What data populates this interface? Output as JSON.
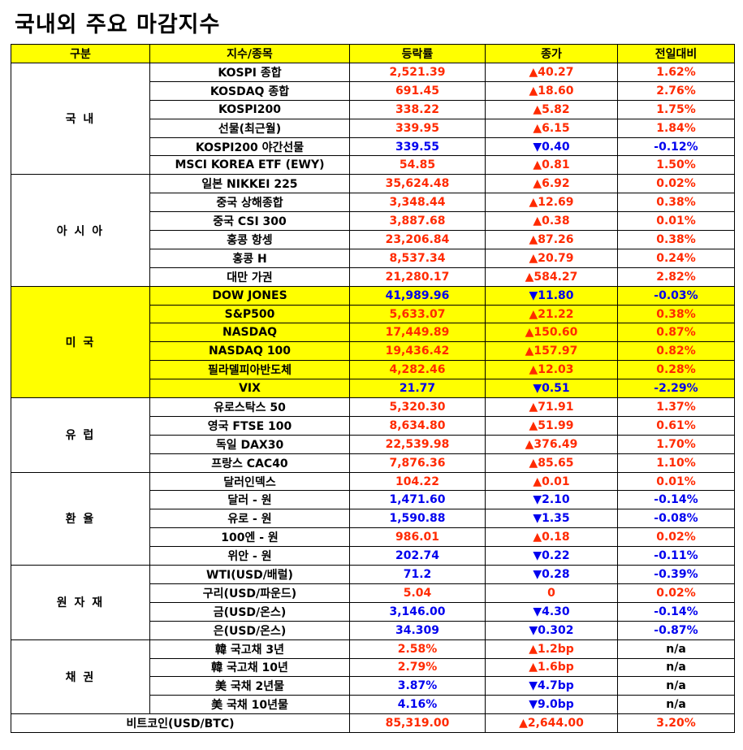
{
  "title": "국내외 주요 마감지수",
  "headers": [
    "구분",
    "지수/종목",
    "등락률",
    "종가",
    "전일대비"
  ],
  "colors": {
    "up": "#ff2a00",
    "down": "#0000ee",
    "highlight": "#ffff00"
  },
  "groups": [
    {
      "label": "국 내",
      "highlight": false,
      "rows": [
        {
          "name": "KOSPI 종합",
          "value": "2,521.39",
          "change": "▲40.27",
          "pct": "1.62%",
          "dir": "up"
        },
        {
          "name": "KOSDAQ 종합",
          "value": "691.45",
          "change": "▲18.60",
          "pct": "2.76%",
          "dir": "up"
        },
        {
          "name": "KOSPI200",
          "value": "338.22",
          "change": "▲5.82",
          "pct": "1.75%",
          "dir": "up"
        },
        {
          "name": "선물(최근월)",
          "value": "339.95",
          "change": "▲6.15",
          "pct": "1.84%",
          "dir": "up"
        },
        {
          "name": "KOSPI200 야간선물",
          "value": "339.55",
          "change": "▼0.40",
          "pct": "-0.12%",
          "dir": "down"
        },
        {
          "name": "MSCI KOREA ETF (EWY)",
          "value": "54.85",
          "change": "▲0.81",
          "pct": "1.50%",
          "dir": "up"
        }
      ]
    },
    {
      "label": "아 시 아",
      "highlight": false,
      "rows": [
        {
          "name": "일본 NIKKEI 225",
          "value": "35,624.48",
          "change": "▲6.92",
          "pct": "0.02%",
          "dir": "up"
        },
        {
          "name": "중국 상해종합",
          "value": "3,348.44",
          "change": "▲12.69",
          "pct": "0.38%",
          "dir": "up"
        },
        {
          "name": "중국 CSI 300",
          "value": "3,887.68",
          "change": "▲0.38",
          "pct": "0.01%",
          "dir": "up"
        },
        {
          "name": "홍콩 항셍",
          "value": "23,206.84",
          "change": "▲87.26",
          "pct": "0.38%",
          "dir": "up"
        },
        {
          "name": "홍콩 H",
          "value": "8,537.34",
          "change": "▲20.79",
          "pct": "0.24%",
          "dir": "up"
        },
        {
          "name": "대만 가권",
          "value": "21,280.17",
          "change": "▲584.27",
          "pct": "2.82%",
          "dir": "up"
        }
      ]
    },
    {
      "label": "미 국",
      "highlight": true,
      "rows": [
        {
          "name": "DOW JONES",
          "value": "41,989.96",
          "change": "▼11.80",
          "pct": "-0.03%",
          "dir": "down"
        },
        {
          "name": "S&P500",
          "value": "5,633.07",
          "change": "▲21.22",
          "pct": "0.38%",
          "dir": "up"
        },
        {
          "name": "NASDAQ",
          "value": "17,449.89",
          "change": "▲150.60",
          "pct": "0.87%",
          "dir": "up"
        },
        {
          "name": "NASDAQ 100",
          "value": "19,436.42",
          "change": "▲157.97",
          "pct": "0.82%",
          "dir": "up"
        },
        {
          "name": "필라델피아반도체",
          "value": "4,282.46",
          "change": "▲12.03",
          "pct": "0.28%",
          "dir": "up"
        },
        {
          "name": "VIX",
          "value": "21.77",
          "change": "▼0.51",
          "pct": "-2.29%",
          "dir": "down"
        }
      ]
    },
    {
      "label": "유 럽",
      "highlight": false,
      "rows": [
        {
          "name": "유로스탁스 50",
          "value": "5,320.30",
          "change": "▲71.91",
          "pct": "1.37%",
          "dir": "up"
        },
        {
          "name": "영국 FTSE 100",
          "value": "8,634.80",
          "change": "▲51.99",
          "pct": "0.61%",
          "dir": "up"
        },
        {
          "name": "독일 DAX30",
          "value": "22,539.98",
          "change": "▲376.49",
          "pct": "1.70%",
          "dir": "up"
        },
        {
          "name": "프랑스 CAC40",
          "value": "7,876.36",
          "change": "▲85.65",
          "pct": "1.10%",
          "dir": "up"
        }
      ]
    },
    {
      "label": "환 율",
      "highlight": false,
      "rows": [
        {
          "name": "달러인덱스",
          "value": "104.22",
          "change": "▲0.01",
          "pct": "0.01%",
          "dir": "up"
        },
        {
          "name": "달러 - 원",
          "value": "1,471.60",
          "change": "▼2.10",
          "pct": "-0.14%",
          "dir": "down"
        },
        {
          "name": "유로 - 원",
          "value": "1,590.88",
          "change": "▼1.35",
          "pct": "-0.08%",
          "dir": "down"
        },
        {
          "name": "100엔 - 원",
          "value": "986.01",
          "change": "▲0.18",
          "pct": "0.02%",
          "dir": "up"
        },
        {
          "name": "위안 - 원",
          "value": "202.74",
          "change": "▼0.22",
          "pct": "-0.11%",
          "dir": "down"
        }
      ]
    },
    {
      "label": "원 자 재",
      "highlight": false,
      "rows": [
        {
          "name": "WTI(USD/배럴)",
          "value": "71.2",
          "change": "▼0.28",
          "pct": "-0.39%",
          "dir": "down"
        },
        {
          "name": "구리(USD/파운드)",
          "value": "5.04",
          "change": "0",
          "pct": "0.02%",
          "dir": "up"
        },
        {
          "name": "금(USD/온스)",
          "value": "3,146.00",
          "change": "▼4.30",
          "pct": "-0.14%",
          "dir": "down"
        },
        {
          "name": "은(USD/온스)",
          "value": "34.309",
          "change": "▼0.302",
          "pct": "-0.87%",
          "dir": "down"
        }
      ]
    },
    {
      "label": "채 권",
      "highlight": false,
      "rows": [
        {
          "name": "韓 국고채 3년",
          "value": "2.58%",
          "change": "▲1.2bp",
          "pct": "n/a",
          "dir": "up",
          "pct_dir": "neutral"
        },
        {
          "name": "韓 국고채 10년",
          "value": "2.79%",
          "change": "▲1.6bp",
          "pct": "n/a",
          "dir": "up",
          "pct_dir": "neutral"
        },
        {
          "name": "美 국채 2년물",
          "value": "3.87%",
          "change": "▼4.7bp",
          "pct": "n/a",
          "dir": "down",
          "pct_dir": "neutral"
        },
        {
          "name": "美 국채 10년물",
          "value": "4.16%",
          "change": "▼9.0bp",
          "pct": "n/a",
          "dir": "down",
          "pct_dir": "neutral"
        }
      ]
    }
  ],
  "bitcoin": {
    "name": "비트코인(USD/BTC)",
    "value": "85,319.00",
    "change": "▲2,644.00",
    "pct": "3.20%",
    "dir": "up"
  }
}
